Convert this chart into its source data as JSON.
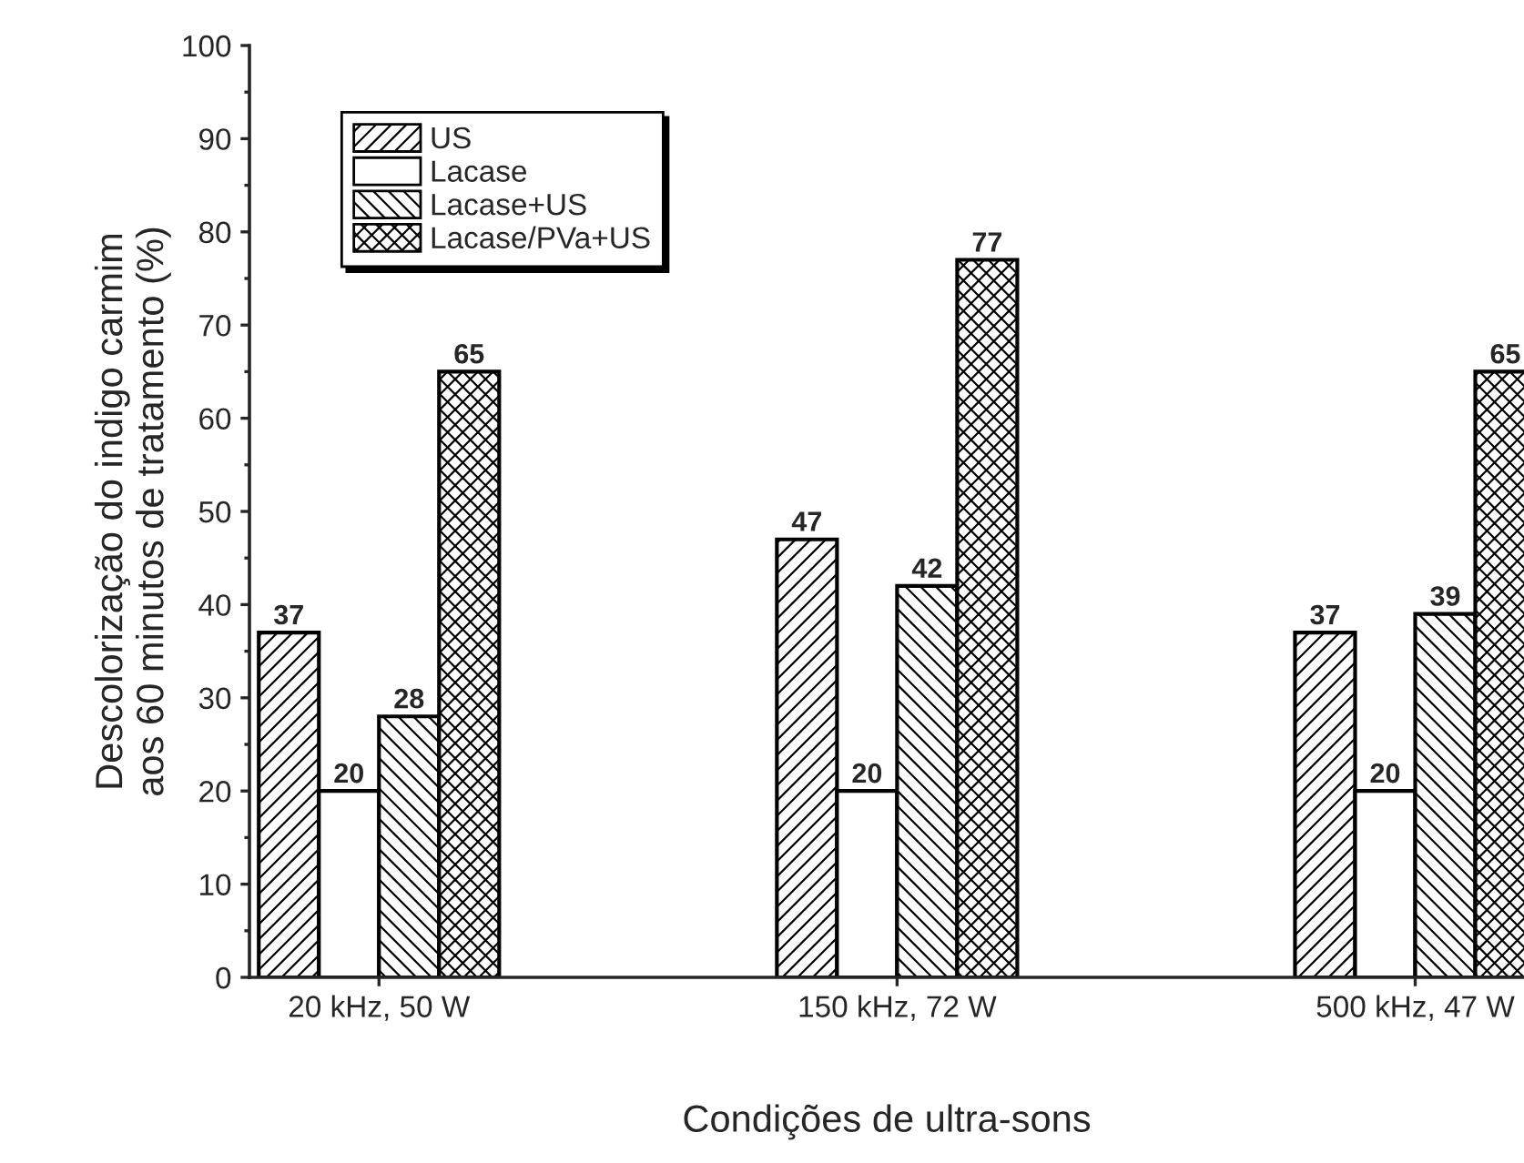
{
  "chart_data": {
    "type": "bar",
    "xlabel": "Condições de ultra-sons",
    "ylabel": "Descolorização do indigo carmim\naos 60 minutos de tratamento (%)",
    "categories": [
      "20 kHz, 50 W",
      "150 kHz, 72 W",
      "500 kHz, 47 W"
    ],
    "series": [
      {
        "name": "US",
        "color": "#000000",
        "values": [
          37,
          47,
          37
        ]
      },
      {
        "name": "Lacase",
        "color": "#000000",
        "values": [
          20,
          20,
          20
        ]
      },
      {
        "name": "Lacase+US",
        "color": "#000000",
        "values": [
          28,
          42,
          39
        ]
      },
      {
        "name": "Lacase/PVa+US",
        "color": "#000000",
        "values": [
          65,
          77,
          65
        ]
      }
    ],
    "ylim": [
      0,
      100
    ],
    "yticks": [
      0,
      10,
      20,
      30,
      40,
      50,
      60,
      70,
      80,
      90,
      100
    ],
    "data_labels": true,
    "legend": "top left",
    "grid": false
  }
}
